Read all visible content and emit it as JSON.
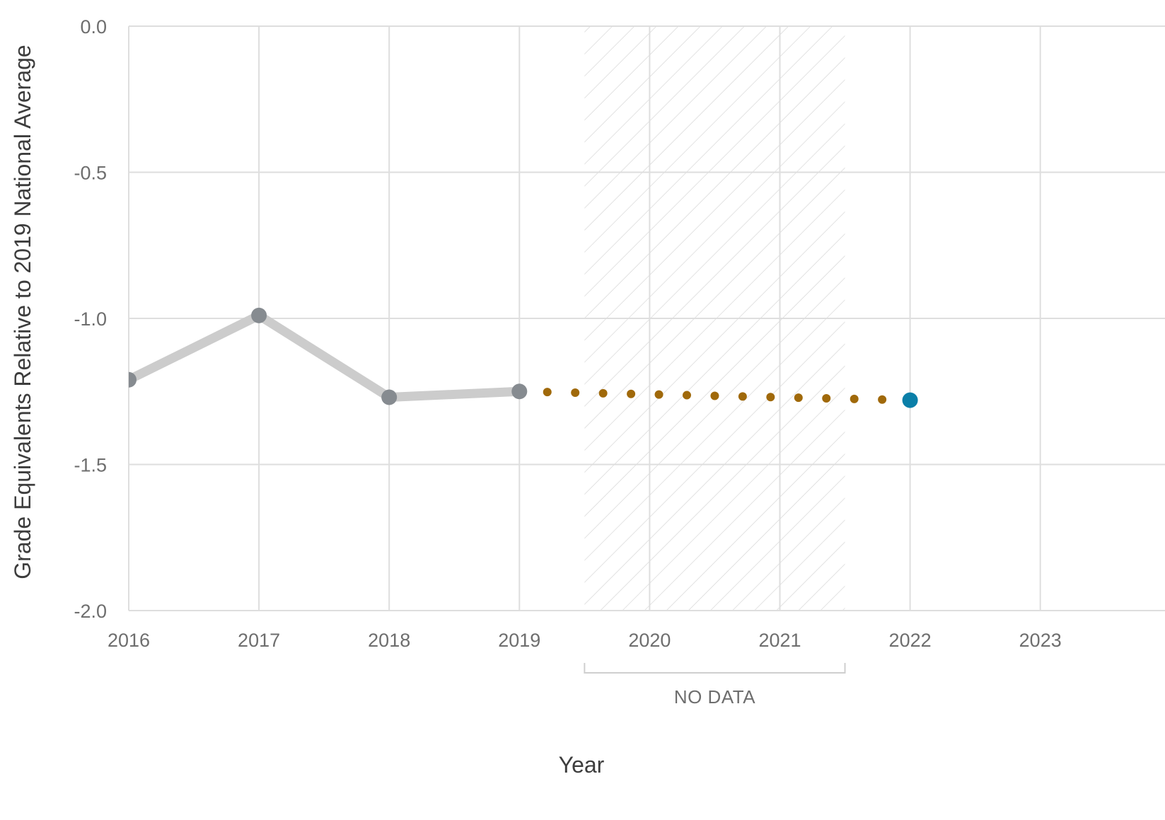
{
  "chart_data": {
    "type": "line",
    "title": "",
    "xlabel": "Year",
    "ylabel": "Grade Equivalents Relative to 2019 National Average",
    "x_ticks": [
      2016,
      2017,
      2018,
      2019,
      2020,
      2021,
      2022,
      2023
    ],
    "x_tick_labels": [
      "2016",
      "2017",
      "2018",
      "2019",
      "2020",
      "2021",
      "2022",
      "2023"
    ],
    "xlim": [
      2016,
      2023.5
    ],
    "y_ticks": [
      0,
      -0.5,
      -1,
      -1.5,
      -2
    ],
    "y_tick_labels": [
      "0.0",
      "-0.5",
      "-1.0",
      "-1.5",
      "-2.0"
    ],
    "ylim": [
      -2.0,
      0.0
    ],
    "grid": true,
    "series": [
      {
        "style": "solid",
        "line_color": "#cccccc",
        "marker_color": "#868b90",
        "x": [
          2016,
          2017,
          2018,
          2019
        ],
        "y": [
          -1.21,
          -0.99,
          -1.27,
          -1.25
        ]
      },
      {
        "style": "dotted",
        "dot_color": "#a0690a",
        "x": [
          2019,
          2022
        ],
        "y": [
          -1.25,
          -1.28
        ]
      },
      {
        "style": "marker",
        "marker_color": "#0a7fa8",
        "x": [
          2022
        ],
        "y": [
          -1.28
        ]
      }
    ],
    "shaded_region": {
      "x_range": [
        2019.5,
        2021.5
      ],
      "pattern": "diagonal-hatch",
      "label": "NO DATA"
    }
  }
}
